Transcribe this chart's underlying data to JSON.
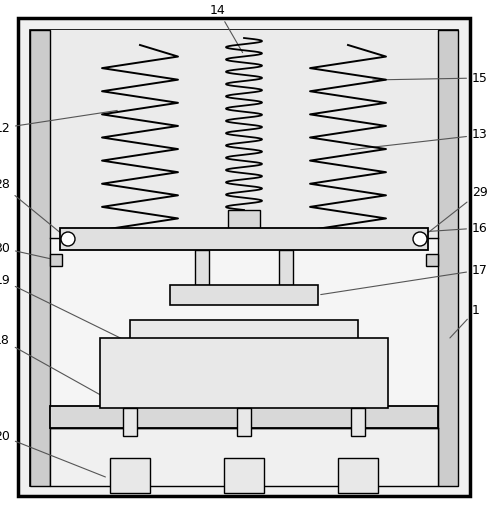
{
  "fig_width": 4.88,
  "fig_height": 5.16,
  "dpi": 100,
  "bg_color": "#ffffff",
  "lc": "#000000",
  "frame_fill": "#f2f2f2",
  "col_fill": "#cccccc",
  "spring_bg": "#ebebeb",
  "plate_fill": "#e0e0e0",
  "dark_fill": "#d0d0d0",
  "white": "#ffffff"
}
